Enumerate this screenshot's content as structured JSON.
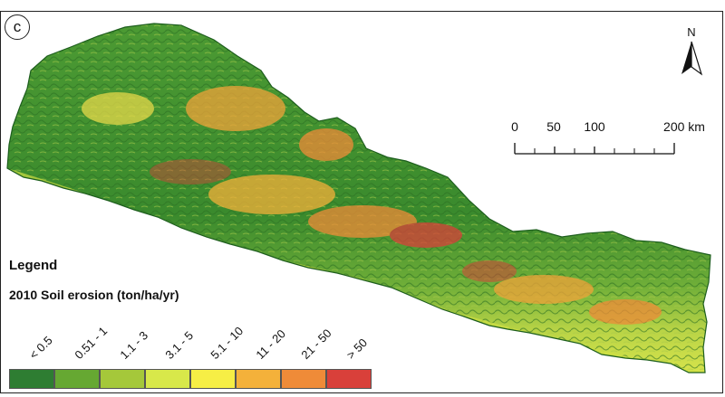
{
  "panel": {
    "letter": "c"
  },
  "north_arrow": {
    "label": "N"
  },
  "scale_bar": {
    "ticks": [
      "0",
      "50",
      "100",
      "200 km"
    ]
  },
  "legend": {
    "title": "Legend",
    "subtitle": "2010 Soil erosion (ton/ha/yr)",
    "classes": [
      {
        "label": "< 0.5",
        "color": "#2e7d32"
      },
      {
        "label": "0.51 - 1",
        "color": "#66a832"
      },
      {
        "label": "1.1 - 3",
        "color": "#a5c83a"
      },
      {
        "label": "3.1 - 5",
        "color": "#d8e84a"
      },
      {
        "label": "5.1 - 10",
        "color": "#f6ee45"
      },
      {
        "label": "11 - 20",
        "color": "#f4b13a"
      },
      {
        "label": "21 - 50",
        "color": "#ef8b38"
      },
      {
        "label": "> 50",
        "color": "#d9403a"
      }
    ]
  },
  "map": {
    "region": "Nepal",
    "colors": {
      "outline": "#1d5e1d",
      "base": "#3f8a2f",
      "ridge": "#7fb13c",
      "hot": "#d9403a",
      "warm": "#f0a33a",
      "terai": "#cfe043"
    }
  }
}
